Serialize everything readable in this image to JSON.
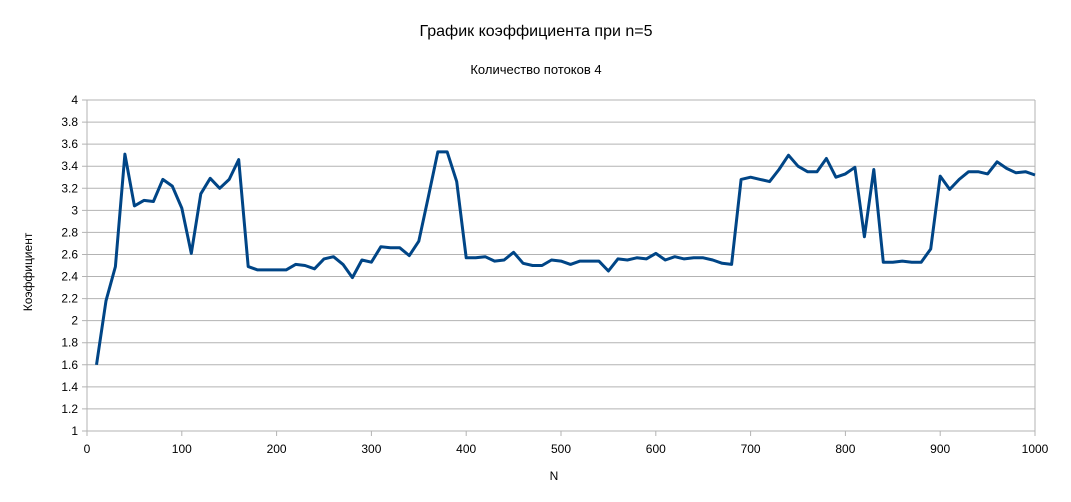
{
  "chart_data": {
    "type": "line",
    "title": "График коэффициента при n=5",
    "subtitle": "Количество потоков 4",
    "xlabel": "N",
    "ylabel": "Коэффициент",
    "xlim": [
      0,
      1000
    ],
    "ylim": [
      1,
      4
    ],
    "x_ticks": [
      0,
      100,
      200,
      300,
      400,
      500,
      600,
      700,
      800,
      900,
      1000
    ],
    "y_ticks": [
      "1",
      "1.2",
      "1.4",
      "1.6",
      "1.8",
      "2",
      "2.2",
      "2.4",
      "2.6",
      "2.8",
      "3",
      "3.2",
      "3.4",
      "3.6",
      "3.8",
      "4"
    ],
    "grid": true,
    "legend": "none",
    "line_color": "#004586",
    "series": [
      {
        "x": [
          10,
          20,
          30,
          40,
          50,
          60,
          70,
          80,
          90,
          100,
          110,
          120,
          130,
          140,
          150,
          160,
          170,
          180,
          190,
          200,
          210,
          220,
          230,
          240,
          250,
          260,
          270,
          280,
          290,
          300,
          310,
          320,
          330,
          340,
          350,
          360,
          370,
          380,
          390,
          400,
          410,
          420,
          430,
          440,
          450,
          460,
          470,
          480,
          490,
          500,
          510,
          520,
          530,
          540,
          550,
          560,
          570,
          580,
          590,
          600,
          610,
          620,
          630,
          640,
          650,
          660,
          670,
          680,
          690,
          700,
          710,
          720,
          730,
          740,
          750,
          760,
          770,
          780,
          790,
          800,
          810,
          820,
          830,
          840,
          850,
          860,
          870,
          880,
          890,
          900,
          910,
          920,
          930,
          940,
          950,
          960,
          970,
          980,
          990,
          1000
        ],
        "values": [
          1.6,
          2.18,
          2.49,
          3.51,
          3.04,
          3.09,
          3.08,
          3.28,
          3.22,
          3.02,
          2.61,
          3.15,
          3.29,
          3.2,
          3.28,
          3.46,
          2.49,
          2.46,
          2.46,
          2.46,
          2.46,
          2.51,
          2.5,
          2.47,
          2.56,
          2.58,
          2.51,
          2.39,
          2.55,
          2.53,
          2.67,
          2.66,
          2.66,
          2.59,
          2.72,
          3.12,
          3.53,
          3.53,
          3.26,
          2.57,
          2.57,
          2.58,
          2.54,
          2.55,
          2.62,
          2.52,
          2.5,
          2.5,
          2.55,
          2.54,
          2.51,
          2.54,
          2.54,
          2.54,
          2.45,
          2.56,
          2.55,
          2.57,
          2.56,
          2.61,
          2.55,
          2.58,
          2.56,
          2.57,
          2.57,
          2.55,
          2.52,
          2.51,
          3.28,
          3.3,
          3.28,
          3.26,
          3.37,
          3.5,
          3.4,
          3.35,
          3.35,
          3.47,
          3.3,
          3.33,
          3.39,
          2.76,
          3.37,
          2.53,
          2.53,
          2.54,
          2.53,
          2.53,
          2.65,
          3.31,
          3.19,
          3.28,
          3.35,
          3.35,
          3.33,
          3.44,
          3.38,
          3.34,
          3.35,
          3.32
        ]
      }
    ]
  }
}
